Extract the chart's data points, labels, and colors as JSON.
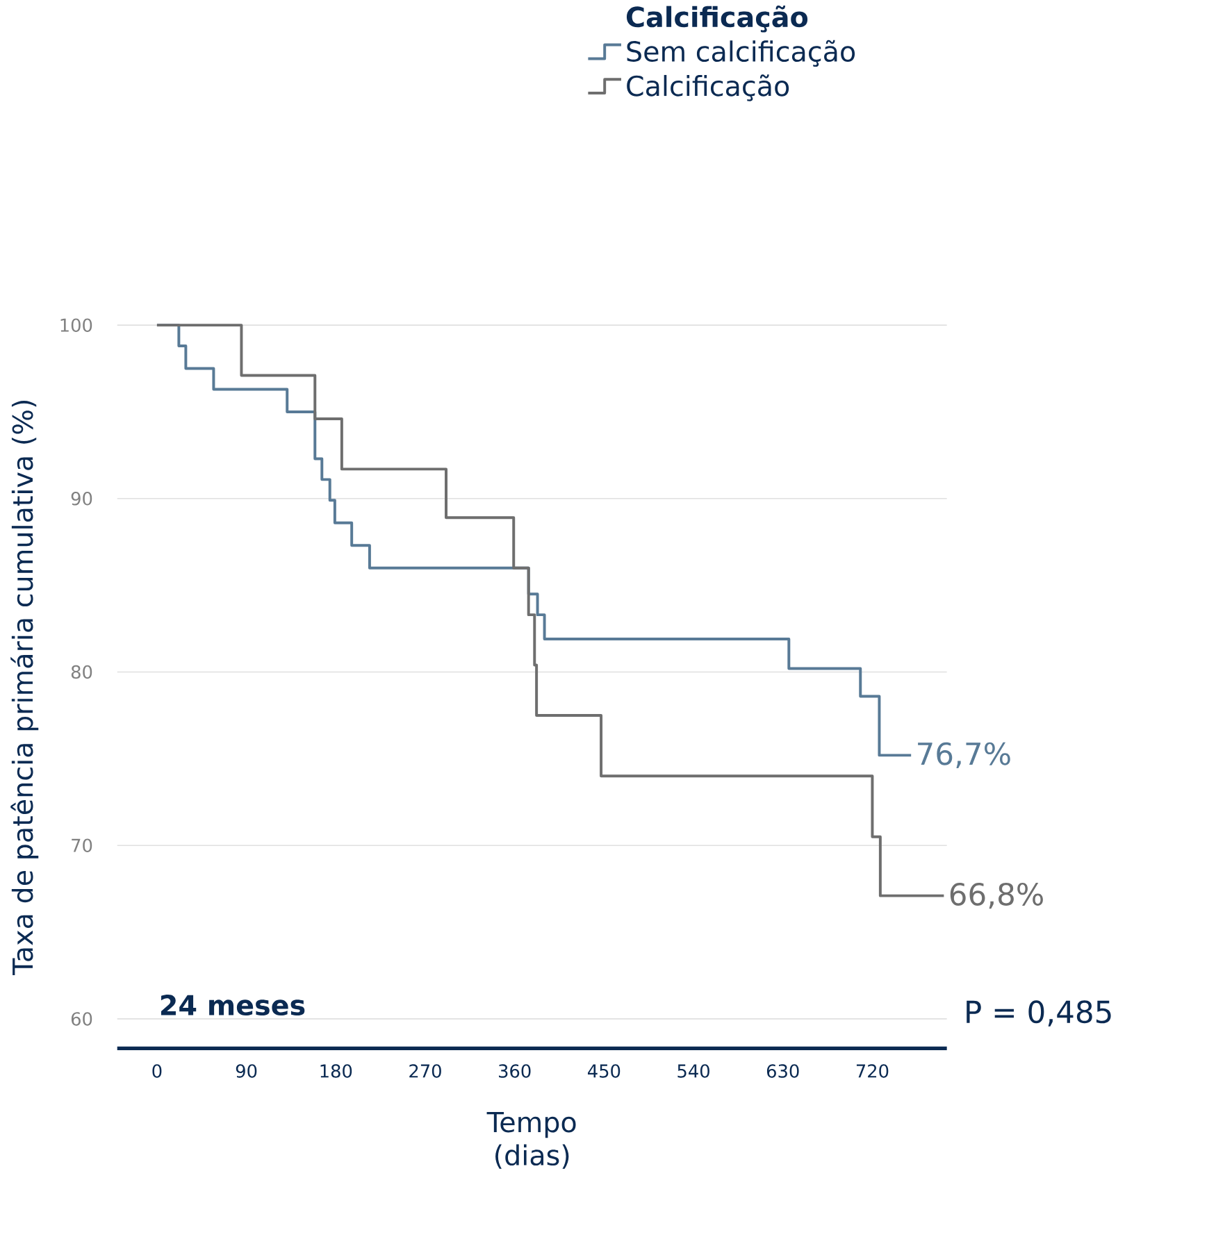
{
  "chart_data": {
    "type": "step",
    "legend_title": "Calcificação",
    "xlabel": "Tempo (dias)",
    "ylabel": "Taxa de patência primária cumulativa (%)",
    "annotations": [
      "76,7%",
      "66,8%",
      "24 meses",
      "P = 0,485"
    ],
    "series": [
      {
        "name": "Sem calcificação",
        "color": "#587a96",
        "x": [
          0,
          22,
          29,
          57,
          131,
          159,
          166,
          174,
          179,
          196,
          214,
          374,
          383,
          390,
          636,
          708,
          727,
          759
        ],
        "values": [
          100,
          98.8,
          97.5,
          96.3,
          95.0,
          92.3,
          91.1,
          89.9,
          88.6,
          87.3,
          86.0,
          84.5,
          83.3,
          81.9,
          80.2,
          78.6,
          75.2,
          75.2
        ]
      },
      {
        "name": "Calcificação",
        "color": "#6e6e6e",
        "x": [
          0,
          85,
          159,
          186,
          291,
          359,
          374,
          380,
          382,
          447,
          720,
          728,
          792
        ],
        "values": [
          100,
          97.1,
          94.6,
          91.7,
          88.9,
          86.0,
          83.3,
          80.4,
          77.5,
          74.0,
          70.5,
          67.1,
          67.1
        ]
      }
    ],
    "xlim": [
      -40,
      795
    ],
    "ylim": [
      58.3,
      100
    ],
    "xticks": [
      0,
      90,
      180,
      270,
      360,
      450,
      540,
      630,
      720
    ],
    "yticks": [
      60,
      70,
      80,
      90,
      100
    ],
    "grid": "y",
    "legend": "top"
  }
}
